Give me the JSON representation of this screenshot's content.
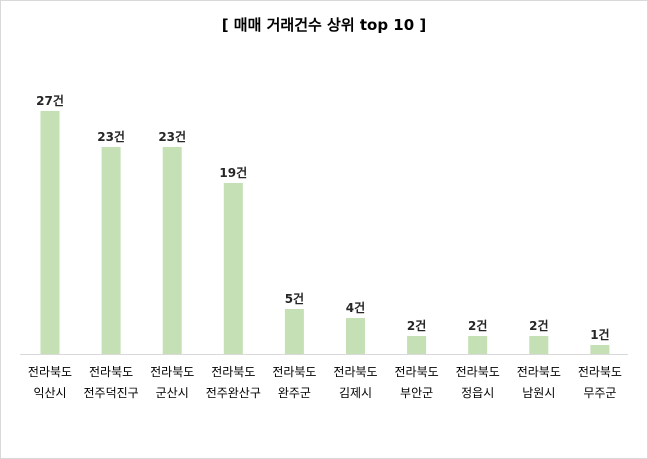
{
  "chart_data": {
    "type": "bar",
    "title": "[ 매매 거래건수 상위 top 10 ]",
    "categories": [
      [
        "전라북도",
        "익산시"
      ],
      [
        "전라북도",
        "전주덕진구"
      ],
      [
        "전라북도",
        "군산시"
      ],
      [
        "전라북도",
        "전주완산구"
      ],
      [
        "전라북도",
        "완주군"
      ],
      [
        "전라북도",
        "김제시"
      ],
      [
        "전라북도",
        "부안군"
      ],
      [
        "전라북도",
        "정읍시"
      ],
      [
        "전라북도",
        "남원시"
      ],
      [
        "전라북도",
        "무주군"
      ]
    ],
    "values": [
      27,
      23,
      23,
      19,
      5,
      4,
      2,
      2,
      2,
      1
    ],
    "data_labels": [
      "27건",
      "23건",
      "23건",
      "19건",
      "5건",
      "4건",
      "2건",
      "2건",
      "2건",
      "1건"
    ],
    "ylim": [
      0,
      30
    ],
    "grid": false,
    "bar_color": "#c5e0b4",
    "axis_color": "#d9d9d9"
  }
}
